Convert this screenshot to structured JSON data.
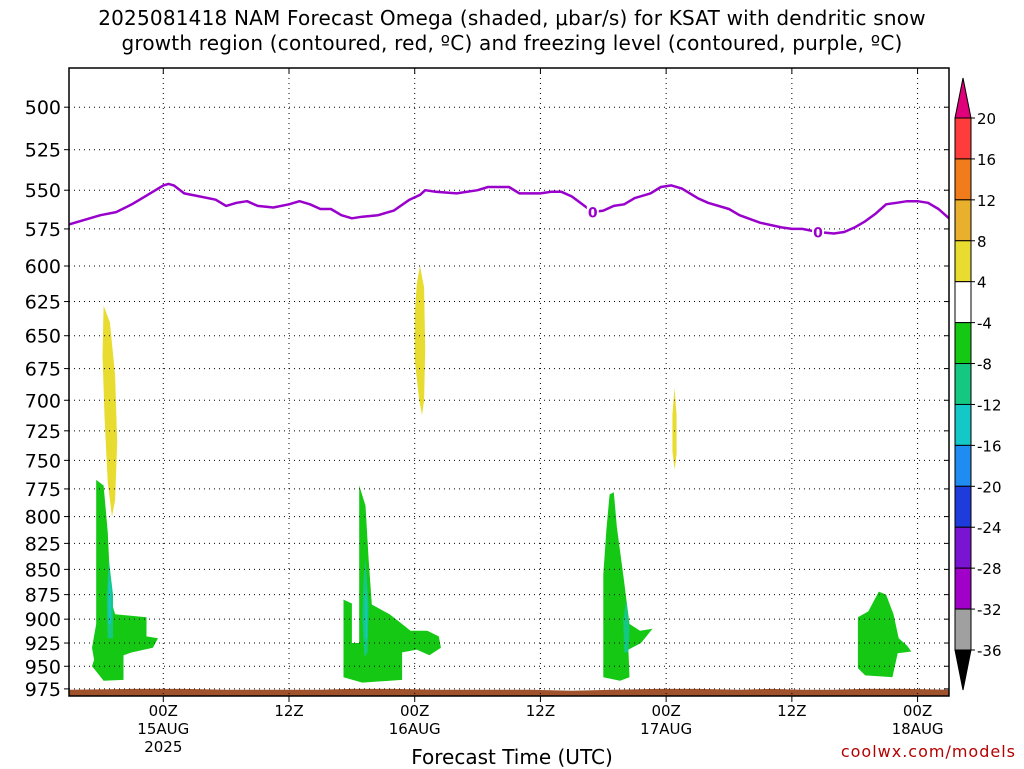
{
  "title": {
    "line1": "2025081418 NAM Forecast Omega (shaded, μbar/s) for KSAT with dendritic snow",
    "line2": "growth region (contoured, red, ºC) and freezing level (contoured, purple, ºC)"
  },
  "credit": "coolwx.com/models",
  "chart_data": {
    "type": "heatmap",
    "xlabel": "Forecast Time (UTC)",
    "ylabel": "",
    "x_axis": {
      "unit": "hours since 2025-08-14 18Z",
      "xlim": [
        -3,
        81
      ],
      "ticks": [
        {
          "x": 6,
          "label": "00Z",
          "sub": "15AUG",
          "sub2": "2025"
        },
        {
          "x": 18,
          "label": "12Z",
          "sub": "",
          "sub2": ""
        },
        {
          "x": 30,
          "label": "00Z",
          "sub": "16AUG",
          "sub2": ""
        },
        {
          "x": 42,
          "label": "12Z",
          "sub": "",
          "sub2": ""
        },
        {
          "x": 54,
          "label": "00Z",
          "sub": "17AUG",
          "sub2": ""
        },
        {
          "x": 66,
          "label": "12Z",
          "sub": "",
          "sub2": ""
        },
        {
          "x": 78,
          "label": "00Z",
          "sub": "18AUG",
          "sub2": ""
        }
      ]
    },
    "y_axis": {
      "unit": "hPa",
      "scale": "log-pressure",
      "ylim": [
        983,
        478
      ],
      "ticks": [
        500,
        525,
        550,
        575,
        600,
        625,
        650,
        675,
        700,
        725,
        750,
        775,
        800,
        825,
        850,
        875,
        900,
        925,
        950,
        975
      ]
    },
    "grid": true,
    "colorbar": {
      "unit": "μbar/s",
      "labels": [
        "20",
        "16",
        "12",
        "8",
        "4",
        "-4",
        "-8",
        "-12",
        "-16",
        "-20",
        "-24",
        "-28",
        "-32",
        "-36"
      ],
      "bins": [
        {
          "color": "#e0007a"
        },
        {
          "from": 20,
          "to": 16,
          "color": "#ff3c3c"
        },
        {
          "from": 16,
          "to": 12,
          "color": "#f07c1c"
        },
        {
          "from": 12,
          "to": 8,
          "color": "#e8b02c"
        },
        {
          "from": 8,
          "to": 4,
          "color": "#e8dc30"
        },
        {
          "from": 4,
          "to": -4,
          "color": "#ffffff"
        },
        {
          "from": -4,
          "to": -8,
          "color": "#14c814"
        },
        {
          "from": -8,
          "to": -12,
          "color": "#14c882"
        },
        {
          "from": -12,
          "to": -16,
          "color": "#14c8c8"
        },
        {
          "from": -16,
          "to": -20,
          "color": "#1e8cf0"
        },
        {
          "from": -20,
          "to": -24,
          "color": "#1e3cdc"
        },
        {
          "from": -24,
          "to": -28,
          "color": "#7814d2"
        },
        {
          "from": -28,
          "to": -32,
          "color": "#a000c8"
        },
        {
          "from": -32,
          "to": -36,
          "color": "#a0a0a0"
        },
        {
          "color": "#000000"
        }
      ]
    },
    "omega_regions": [
      {
        "value_range": "4 to 8",
        "color": "#e8dc30",
        "points": [
          [
            0.3,
            628
          ],
          [
            0.9,
            640
          ],
          [
            1.4,
            680
          ],
          [
            1.6,
            735
          ],
          [
            1.4,
            785
          ],
          [
            1.1,
            800
          ],
          [
            0.7,
            770
          ],
          [
            0.4,
            715
          ],
          [
            0.2,
            665
          ]
        ]
      },
      {
        "value_range": "4 to 8",
        "color": "#e8dc30",
        "points": [
          [
            30.5,
            600
          ],
          [
            30.9,
            615
          ],
          [
            31.0,
            660
          ],
          [
            30.9,
            700
          ],
          [
            30.7,
            712
          ],
          [
            30.4,
            698
          ],
          [
            30.0,
            668
          ],
          [
            30.0,
            635
          ],
          [
            30.2,
            612
          ]
        ]
      },
      {
        "value_range": "4 to 8",
        "color": "#e8dc30",
        "points": [
          [
            54.8,
            690
          ],
          [
            55.0,
            712
          ],
          [
            55.0,
            745
          ],
          [
            54.8,
            758
          ],
          [
            54.6,
            742
          ],
          [
            54.6,
            712
          ]
        ]
      },
      {
        "value_range": "-4 to -8",
        "color": "#14c814",
        "points": [
          [
            -0.4,
            767
          ],
          [
            0.3,
            772
          ],
          [
            0.7,
            815
          ],
          [
            1.0,
            880
          ],
          [
            1.4,
            895
          ],
          [
            4.4,
            898
          ],
          [
            4.4,
            918
          ],
          [
            5.5,
            920
          ],
          [
            5.0,
            930
          ],
          [
            3.0,
            935
          ],
          [
            2.2,
            938
          ],
          [
            2.2,
            965
          ],
          [
            0.3,
            966
          ],
          [
            -0.3,
            957
          ],
          [
            -0.8,
            950
          ],
          [
            -0.6,
            943
          ],
          [
            -0.8,
            930
          ],
          [
            -0.4,
            905
          ]
        ]
      },
      {
        "value_range": "-4 to -8",
        "color": "#14c814",
        "points": [
          [
            23.2,
            880
          ],
          [
            24.0,
            884
          ],
          [
            24.0,
            925
          ],
          [
            24.7,
            925
          ],
          [
            24.7,
            825
          ],
          [
            24.7,
            772
          ],
          [
            25.3,
            790
          ],
          [
            25.6,
            840
          ],
          [
            25.9,
            885
          ],
          [
            27.6,
            895
          ],
          [
            28.8,
            905
          ],
          [
            29.6,
            912
          ],
          [
            31.2,
            912
          ],
          [
            32.3,
            918
          ],
          [
            32.5,
            930
          ],
          [
            31.4,
            938
          ],
          [
            30.2,
            932
          ],
          [
            28.8,
            935
          ],
          [
            28.8,
            965
          ],
          [
            25.0,
            968
          ],
          [
            23.2,
            962
          ]
        ]
      },
      {
        "value_range": "-4 to -8",
        "color": "#14c814",
        "points": [
          [
            48.6,
            780
          ],
          [
            49.0,
            778
          ],
          [
            49.3,
            810
          ],
          [
            49.9,
            855
          ],
          [
            50.5,
            905
          ],
          [
            51.5,
            912
          ],
          [
            52.7,
            910
          ],
          [
            51.6,
            925
          ],
          [
            50.4,
            932
          ],
          [
            50.5,
            962
          ],
          [
            49.6,
            966
          ],
          [
            48.0,
            962
          ],
          [
            48.0,
            855
          ],
          [
            48.3,
            812
          ]
        ]
      },
      {
        "value_range": "-4 to -8",
        "color": "#14c814",
        "points": [
          [
            74.3,
            872
          ],
          [
            75.0,
            875
          ],
          [
            75.7,
            895
          ],
          [
            76.2,
            920
          ],
          [
            77.0,
            928
          ],
          [
            77.4,
            934
          ],
          [
            76.1,
            936
          ],
          [
            75.6,
            962
          ],
          [
            73.0,
            960
          ],
          [
            72.3,
            952
          ],
          [
            72.3,
            898
          ],
          [
            73.3,
            892
          ]
        ]
      },
      {
        "value_range": "-8 to -12",
        "color": "#14c882",
        "points": [
          [
            0.8,
            840
          ],
          [
            1.2,
            875
          ],
          [
            1.2,
            920
          ],
          [
            0.7,
            920
          ],
          [
            0.6,
            880
          ]
        ]
      },
      {
        "value_range": "-8 to -12",
        "color": "#14c882",
        "points": [
          [
            25.3,
            840
          ],
          [
            25.6,
            885
          ],
          [
            25.5,
            935
          ],
          [
            25.2,
            940
          ],
          [
            25.0,
            900
          ],
          [
            25.1,
            860
          ]
        ]
      },
      {
        "value_range": "-8 to -12",
        "color": "#14c882",
        "points": [
          [
            50.2,
            880
          ],
          [
            50.5,
            910
          ],
          [
            50.4,
            935
          ],
          [
            50.0,
            935
          ],
          [
            49.9,
            900
          ]
        ]
      },
      {
        "value_range": "-12 to -16",
        "color": "#14c8c8",
        "points": [
          [
            0.8,
            855
          ],
          [
            1.0,
            870
          ],
          [
            1.0,
            905
          ],
          [
            0.8,
            905
          ]
        ]
      },
      {
        "value_range": "-12 to -16",
        "color": "#14c8c8",
        "points": [
          [
            25.3,
            870
          ],
          [
            25.45,
            885
          ],
          [
            25.45,
            920
          ],
          [
            25.3,
            920
          ]
        ]
      }
    ],
    "surface": {
      "color": "#a0522d",
      "points": [
        [
          -3,
          976
        ],
        [
          3,
          975
        ],
        [
          8,
          975
        ],
        [
          12,
          976
        ],
        [
          15,
          976
        ],
        [
          18,
          976
        ],
        [
          21,
          976
        ],
        [
          24,
          975
        ],
        [
          28,
          975
        ],
        [
          32,
          976
        ],
        [
          36,
          976
        ],
        [
          41,
          976
        ],
        [
          45,
          977
        ],
        [
          49,
          976
        ],
        [
          53,
          975
        ],
        [
          57,
          975
        ],
        [
          61,
          976
        ],
        [
          64,
          975
        ],
        [
          67,
          976
        ],
        [
          70,
          976
        ],
        [
          73,
          975
        ],
        [
          77,
          975
        ],
        [
          81,
          976
        ]
      ]
    },
    "freezing_level": {
      "name": "0",
      "color": "#9900cc",
      "contour_labels": [
        {
          "x": 47,
          "p": 564
        },
        {
          "x": 68.5,
          "p": 577
        }
      ],
      "points": [
        [
          -3,
          572
        ],
        [
          -1.5,
          569
        ],
        [
          0,
          566
        ],
        [
          1.5,
          564
        ],
        [
          3,
          559
        ],
        [
          4.5,
          553
        ],
        [
          6,
          547
        ],
        [
          6.5,
          546
        ],
        [
          7,
          547
        ],
        [
          8,
          552
        ],
        [
          9.5,
          554
        ],
        [
          11,
          556
        ],
        [
          12,
          560
        ],
        [
          13,
          558
        ],
        [
          14,
          557
        ],
        [
          15,
          560
        ],
        [
          16.5,
          561
        ],
        [
          18,
          559
        ],
        [
          19,
          557
        ],
        [
          20,
          559
        ],
        [
          21,
          562
        ],
        [
          22,
          562
        ],
        [
          23,
          566
        ],
        [
          24,
          568
        ],
        [
          25,
          567
        ],
        [
          26.5,
          566
        ],
        [
          28,
          563
        ],
        [
          29.5,
          556
        ],
        [
          30.5,
          553
        ],
        [
          31,
          550
        ],
        [
          32,
          551
        ],
        [
          34,
          552
        ],
        [
          36,
          550
        ],
        [
          37,
          548
        ],
        [
          38,
          548
        ],
        [
          39,
          548
        ],
        [
          40,
          552
        ],
        [
          42,
          552
        ],
        [
          43,
          551
        ],
        [
          44,
          551
        ],
        [
          45,
          554
        ],
        [
          46,
          559
        ],
        [
          47,
          564
        ],
        [
          48,
          563
        ],
        [
          49,
          560
        ],
        [
          50,
          559
        ],
        [
          51,
          555
        ],
        [
          52.5,
          552
        ],
        [
          53.5,
          548
        ],
        [
          54.5,
          547
        ],
        [
          55.5,
          549
        ],
        [
          57,
          555
        ],
        [
          58,
          558
        ],
        [
          60,
          562
        ],
        [
          61,
          566
        ],
        [
          63,
          571
        ],
        [
          65,
          574
        ],
        [
          66,
          575
        ],
        [
          67,
          575
        ],
        [
          68.5,
          577
        ],
        [
          70,
          578
        ],
        [
          71,
          577
        ],
        [
          72,
          574
        ],
        [
          73,
          570
        ],
        [
          74,
          565
        ],
        [
          75,
          559
        ],
        [
          76,
          558
        ],
        [
          77,
          557
        ],
        [
          78,
          557
        ],
        [
          79,
          558
        ],
        [
          80,
          562
        ],
        [
          81,
          568
        ]
      ]
    }
  }
}
